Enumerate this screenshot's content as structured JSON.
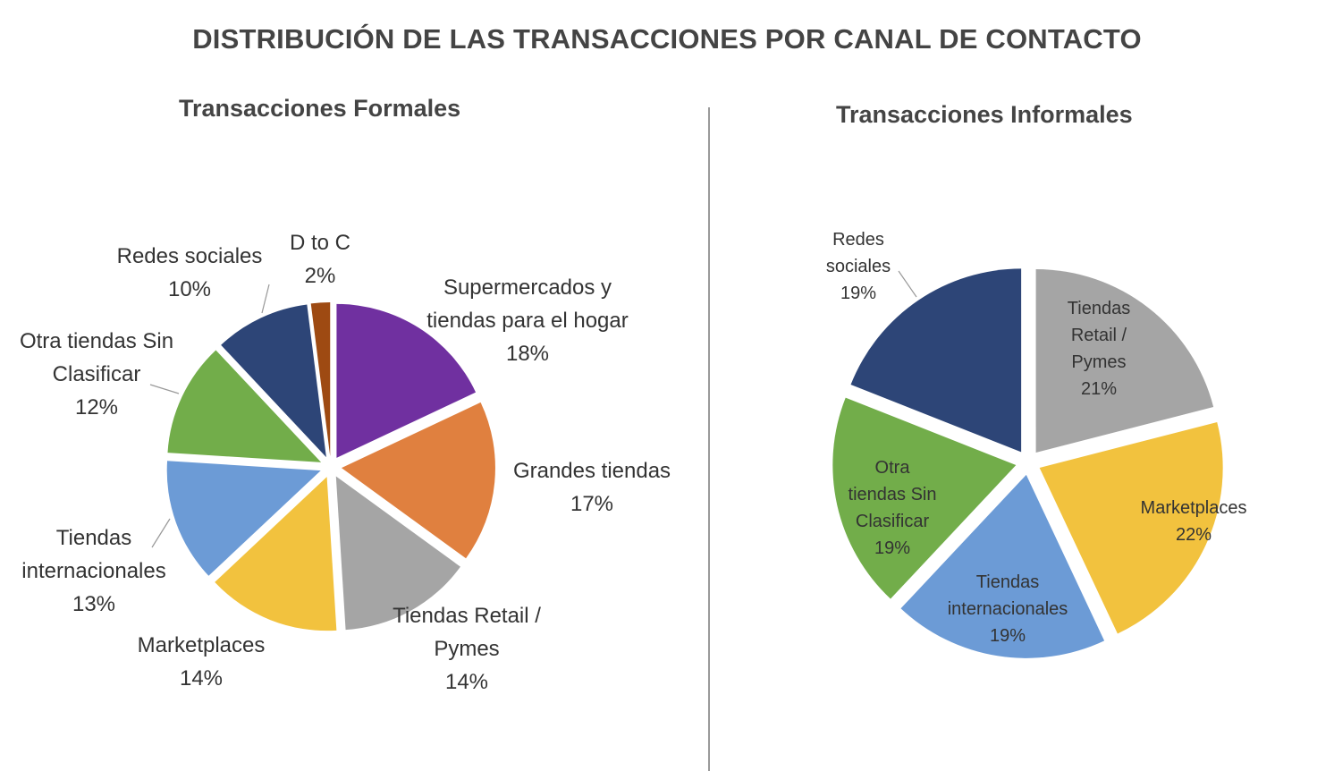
{
  "title": "DISTRIBUCIÓN DE LAS TRANSACCIONES  POR CANAL DE CONTACTO",
  "chart_data": [
    {
      "type": "pie",
      "title": "Transacciones Formales",
      "categories": [
        "Supermercados y\ntiendas para el hogar",
        "Grandes tiendas",
        "Tiendas Retail /\nPymes",
        "Marketplaces",
        "Tiendas\ninternacionales",
        "Otra tiendas Sin\nClasificar",
        "Redes sociales",
        "D to C"
      ],
      "values": [
        18,
        17,
        14,
        14,
        13,
        12,
        10,
        2
      ],
      "labels": [
        "18%",
        "17%",
        "14%",
        "14%",
        "13%",
        "12%",
        "10%",
        "2%"
      ],
      "colors": [
        "#7030A0",
        "#E0803F",
        "#A5A5A5",
        "#F2C23E",
        "#6C9BD6",
        "#72AD4A",
        "#2D4577",
        "#9E4A12"
      ]
    },
    {
      "type": "pie",
      "title": "Transacciones Informales",
      "categories": [
        "Tiendas\nRetail /\nPymes",
        "Marketplaces",
        "Tiendas\ninternacionales",
        "Otra\ntiendas Sin\nClasificar",
        "Redes\nsociales"
      ],
      "values": [
        21,
        22,
        19,
        19,
        19
      ],
      "labels": [
        "21%",
        "22%",
        "19%",
        "19%",
        "19%"
      ],
      "colors": [
        "#A5A5A5",
        "#F2C23E",
        "#6C9BD6",
        "#72AD4A",
        "#2D4577"
      ]
    }
  ]
}
